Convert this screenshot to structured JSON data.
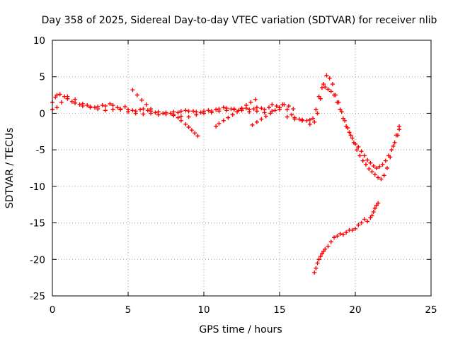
{
  "chart_data": {
    "type": "scatter",
    "title": "Day 358 of 2025, Sidereal Day-to-day VTEC variation (SDTVAR) for receiver nlib",
    "xlabel": "GPS time / hours",
    "ylabel": "SDTVAR / TECUs",
    "xlim": [
      0,
      25
    ],
    "ylim": [
      -25,
      10
    ],
    "xticks": [
      0,
      5,
      10,
      15,
      20,
      25
    ],
    "yticks": [
      -25,
      -20,
      -15,
      -10,
      -5,
      0,
      5,
      10
    ],
    "grid": true,
    "marker": "+",
    "series": [
      {
        "name": "main",
        "color": "#ff0000",
        "segments": [
          {
            "x": [
              0.0,
              0.2,
              0.3,
              0.5,
              0.8,
              1.0,
              1.3,
              1.5,
              1.8,
              2.0,
              2.3,
              2.5,
              2.8,
              3.0,
              3.3,
              3.5,
              3.8,
              4.0,
              4.3,
              4.5,
              4.8,
              5.0,
              5.3,
              5.5,
              5.8,
              6.0,
              6.3,
              6.5,
              6.8,
              7.0,
              7.3,
              7.5,
              7.8,
              8.0,
              8.3,
              8.5,
              8.8,
              9.0,
              9.3,
              9.5,
              9.8,
              10.0,
              10.3,
              10.5,
              10.8,
              11.0,
              11.3,
              11.5,
              11.8,
              12.0,
              12.3,
              12.5,
              12.8,
              13.0,
              13.3,
              13.5,
              13.8,
              14.0,
              14.3,
              14.5,
              14.8,
              15.0,
              15.2,
              15.5,
              15.8,
              16.0,
              16.3,
              16.5,
              16.8,
              17.0,
              17.2,
              17.4,
              17.6,
              17.8,
              18.0,
              18.2,
              18.4,
              18.6,
              18.8,
              19.0,
              19.2,
              19.4,
              19.6,
              19.8,
              20.0,
              20.2,
              20.4,
              20.6,
              20.8,
              21.0,
              21.2,
              21.4,
              21.6,
              21.8,
              22.0,
              22.2,
              22.4,
              22.6,
              22.8,
              22.9
            ],
            "y": [
              1.5,
              2.2,
              2.5,
              2.6,
              2.3,
              2.0,
              1.6,
              1.4,
              1.2,
              1.0,
              1.1,
              0.9,
              0.8,
              0.9,
              1.1,
              1.0,
              1.3,
              1.1,
              0.8,
              0.6,
              0.9,
              0.5,
              0.4,
              0.3,
              0.5,
              0.6,
              0.4,
              0.3,
              0.1,
              0.2,
              0.0,
              0.1,
              0.0,
              0.2,
              0.1,
              0.3,
              0.4,
              0.3,
              0.3,
              0.2,
              0.1,
              0.3,
              0.4,
              0.3,
              0.5,
              0.6,
              0.8,
              0.7,
              0.6,
              0.5,
              0.4,
              0.6,
              0.7,
              0.5,
              0.6,
              0.8,
              0.7,
              0.5,
              0.8,
              1.2,
              1.0,
              0.8,
              1.2,
              0.5,
              -0.2,
              -0.6,
              -0.8,
              -0.9,
              -1.0,
              -0.9,
              -0.7,
              0.5,
              2.3,
              3.5,
              3.6,
              3.3,
              3.0,
              2.5,
              1.5,
              0.5,
              -0.7,
              -1.8,
              -2.6,
              -3.4,
              -4.2,
              -4.6,
              -5.2,
              -5.8,
              -6.4,
              -6.8,
              -7.2,
              -7.5,
              -7.3,
              -7.0,
              -6.5,
              -5.8,
              -5.0,
              -4.0,
              -3.0,
              -2.2
            ]
          },
          {
            "x": [
              0.0,
              0.3,
              0.6,
              1.0,
              1.5,
              2.0,
              2.5,
              3.0,
              3.5,
              4.0,
              4.5,
              5.0,
              5.5,
              6.0,
              6.5,
              7.0,
              7.5,
              8.0,
              8.5,
              9.0,
              9.5,
              10.0,
              10.5,
              11.0,
              11.5,
              12.0,
              12.5,
              13.0,
              13.5,
              14.0,
              14.5,
              15.0,
              15.5,
              16.0,
              16.5,
              17.0,
              17.3,
              17.5,
              17.7,
              17.9,
              18.1,
              18.3,
              18.5,
              18.7,
              18.9,
              19.1,
              19.3,
              19.5,
              19.7,
              19.9,
              20.1,
              20.3,
              20.5,
              20.7,
              20.9,
              21.1,
              21.3,
              21.5,
              21.7,
              21.9,
              22.1,
              22.3,
              22.5,
              22.7,
              22.9
            ],
            "y": [
              0.5,
              0.8,
              1.5,
              2.3,
              1.9,
              1.3,
              0.8,
              0.6,
              0.4,
              0.5,
              0.5,
              0.2,
              0.0,
              -0.1,
              0.0,
              -0.2,
              -0.1,
              -0.3,
              -0.4,
              -0.5,
              -0.2,
              0.0,
              0.1,
              0.3,
              0.4,
              0.6,
              0.4,
              0.2,
              0.3,
              0.1,
              0.3,
              0.5,
              -0.5,
              -0.8,
              -1.0,
              -1.5,
              -1.2,
              0.0,
              2.0,
              4.0,
              5.2,
              4.8,
              4.0,
              2.5,
              1.5,
              0.2,
              -1.0,
              -2.0,
              -3.0,
              -4.0,
              -5.0,
              -5.8,
              -6.5,
              -7.0,
              -7.6,
              -8.0,
              -8.4,
              -8.8,
              -9.0,
              -8.5,
              -7.5,
              -6.0,
              -4.5,
              -3.0,
              -1.8
            ]
          },
          {
            "x": [
              5.3,
              5.6,
              5.9,
              6.2,
              6.5
            ],
            "y": [
              3.2,
              2.5,
              1.8,
              1.2,
              0.6
            ]
          },
          {
            "x": [
              8.0,
              8.3,
              8.5,
              8.8,
              9.0,
              9.2,
              9.4,
              9.6
            ],
            "y": [
              -0.2,
              -0.6,
              -1.0,
              -1.5,
              -1.9,
              -2.3,
              -2.7,
              -3.1
            ]
          },
          {
            "x": [
              10.8,
              11.0,
              11.3,
              11.6,
              11.9,
              12.2,
              12.5,
              12.8,
              13.1,
              13.4
            ],
            "y": [
              -1.8,
              -1.4,
              -1.0,
              -0.6,
              -0.2,
              0.2,
              0.7,
              1.1,
              1.5,
              1.9
            ]
          },
          {
            "x": [
              13.2,
              13.5,
              13.8,
              14.1,
              14.4,
              14.7,
              15.0,
              15.3,
              15.6,
              15.9
            ],
            "y": [
              -1.6,
              -1.2,
              -0.8,
              -0.4,
              0.0,
              0.4,
              0.8,
              1.2,
              1.0,
              0.6
            ]
          },
          {
            "x": [
              17.3,
              17.4,
              17.5,
              17.6,
              17.7,
              17.8,
              17.9,
              18.0,
              18.2,
              18.4,
              18.6,
              18.8,
              19.0,
              19.2,
              19.4,
              19.6,
              19.8,
              20.0,
              20.2,
              20.4,
              20.6,
              20.8,
              21.0,
              21.1,
              21.2,
              21.3,
              21.4,
              21.5
            ],
            "y": [
              -21.8,
              -21.2,
              -20.5,
              -20.0,
              -19.6,
              -19.2,
              -18.9,
              -18.6,
              -18.2,
              -17.6,
              -17.0,
              -16.8,
              -16.5,
              -16.6,
              -16.3,
              -16.0,
              -16.0,
              -15.8,
              -15.3,
              -15.0,
              -14.5,
              -14.8,
              -14.3,
              -14.0,
              -13.5,
              -13.0,
              -12.6,
              -12.3
            ]
          }
        ]
      }
    ]
  }
}
